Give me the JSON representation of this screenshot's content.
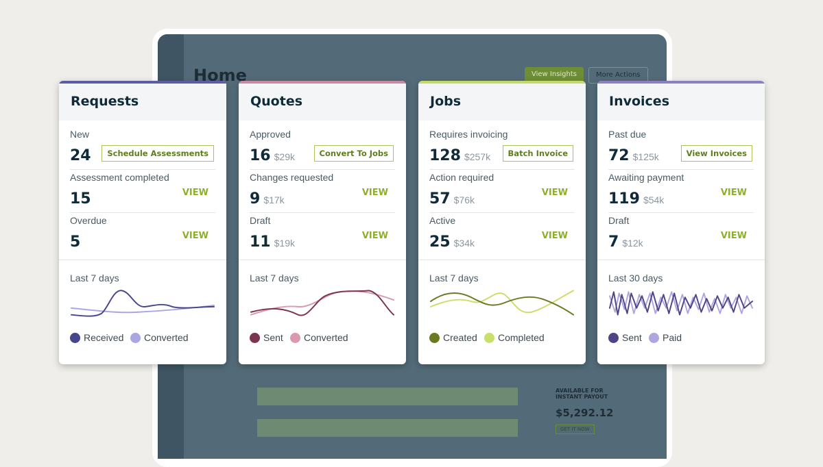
{
  "background": {
    "home_title": "Home",
    "buttons": [
      "View Insights",
      "More Actions"
    ],
    "payout_label": "AVAILABLE FOR INSTANT PAYOUT",
    "payout_amount": "$5,292.12",
    "payout_button": "GET IT NOW"
  },
  "cards": [
    {
      "title": "Requests",
      "accent": "#5b5ea6",
      "rows": [
        {
          "label": "New",
          "count": 24,
          "action": "Schedule Assessments"
        },
        {
          "label": "Assessment completed",
          "count": 15,
          "action": "VIEW"
        },
        {
          "label": "Overdue",
          "count": 5,
          "action": "VIEW"
        }
      ],
      "period": "Last 7 days",
      "legend": [
        {
          "name": "Received",
          "color": "#46468a"
        },
        {
          "name": "Converted",
          "color": "#a9a6e2"
        }
      ]
    },
    {
      "title": "Quotes",
      "accent": "#c98a9f",
      "rows": [
        {
          "label": "Approved",
          "count": 16,
          "amount": "$29k",
          "action": "Convert To Jobs"
        },
        {
          "label": "Changes requested",
          "count": 9,
          "amount": "$17k",
          "action": "VIEW"
        },
        {
          "label": "Draft",
          "count": 11,
          "amount": "$19k",
          "action": "VIEW"
        }
      ],
      "period": "Last 7 days",
      "legend": [
        {
          "name": "Sent",
          "color": "#7a3550"
        },
        {
          "name": "Converted",
          "color": "#d99aad"
        }
      ]
    },
    {
      "title": "Jobs",
      "accent": "#c3d968",
      "rows": [
        {
          "label": "Requires invoicing",
          "count": 128,
          "amount": "$257k",
          "action": "Batch Invoice"
        },
        {
          "label": "Action required",
          "count": 57,
          "amount": "$76k",
          "action": "VIEW"
        },
        {
          "label": "Active",
          "count": 25,
          "amount": "$34k",
          "action": "VIEW"
        }
      ],
      "period": "Last 7 days",
      "legend": [
        {
          "name": "Created",
          "color": "#6b7a22"
        },
        {
          "name": "Completed",
          "color": "#c8df6e"
        }
      ]
    },
    {
      "title": "Invoices",
      "accent": "#8c80c4",
      "rows": [
        {
          "label": "Past due",
          "count": 72,
          "amount": "$125k",
          "action": "View Invoices"
        },
        {
          "label": "Awaiting payment",
          "count": 119,
          "amount": "$54k",
          "action": "VIEW"
        },
        {
          "label": "Draft",
          "count": 7,
          "amount": "$12k",
          "action": "VIEW"
        }
      ],
      "period": "Last 30 days",
      "legend": [
        {
          "name": "Sent",
          "color": "#4f4585"
        },
        {
          "name": "Paid",
          "color": "#b0a5e0"
        }
      ]
    }
  ]
}
